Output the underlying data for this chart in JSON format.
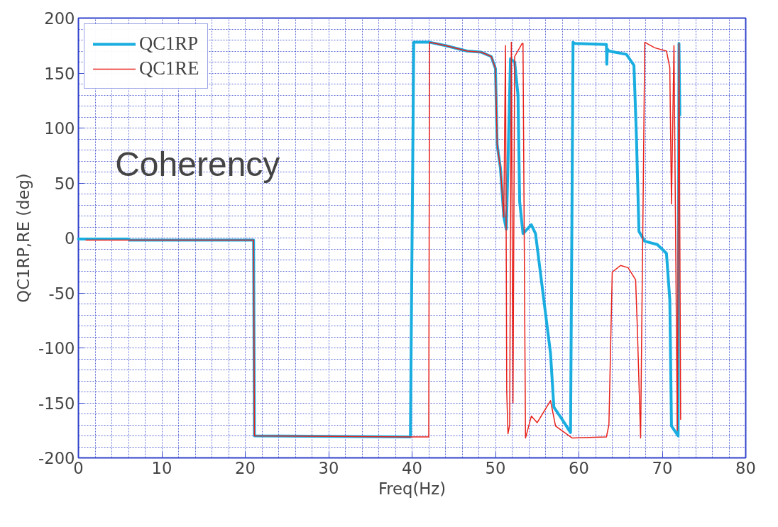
{
  "chart_data": {
    "type": "line",
    "xlabel": "Freq(Hz)",
    "ylabel": "QC1RP,RE (deg)",
    "annotations": [
      "Coherency"
    ],
    "xlim": [
      0,
      80
    ],
    "xticks": [
      0,
      10,
      20,
      30,
      40,
      50,
      60,
      70,
      80
    ],
    "ylim": [
      -200,
      200
    ],
    "yticks": [
      -200,
      -150,
      -100,
      -50,
      0,
      50,
      100,
      150,
      200
    ],
    "grid": true,
    "legend": "top left",
    "marker": "none",
    "line_style": "solid",
    "series": [
      {
        "name": "QC1RP",
        "color": "#1aaee0",
        "x": [
          0,
          6,
          6.1,
          21,
          21.1,
          39.8,
          40.2,
          42.1,
          44,
          46.6,
          48.3,
          49.5,
          50,
          50.2,
          50.6,
          51.0,
          51.3,
          51.5,
          51.8,
          52.3,
          52.7,
          52.9,
          53.3,
          54.3,
          54.8,
          56.6,
          57,
          57.9,
          59,
          59.3,
          59.5,
          63.3,
          63.35,
          63.4,
          63.6,
          65.7,
          66.6,
          66.9,
          67.2,
          67.9,
          69.4,
          70.5,
          70.9,
          71.1,
          71.9,
          72.0,
          72.1
        ],
        "values": [
          -1,
          -1,
          -2,
          -2,
          -180,
          -181,
          178,
          178,
          175,
          170,
          169,
          165,
          154,
          85,
          63,
          19,
          8,
          68,
          163,
          160,
          130,
          33,
          4,
          12,
          4,
          -105,
          -154,
          -164,
          -177,
          178,
          177,
          176,
          158,
          172,
          170,
          167,
          157,
          92,
          6,
          -3,
          -6,
          -14,
          -56,
          -171,
          -180,
          177,
          112
        ]
      },
      {
        "name": "QC1RE",
        "color": "#e8231c",
        "x": [
          0.9,
          6,
          6.1,
          21,
          21.1,
          39.8,
          42.0,
          42.1,
          44,
          46.6,
          48.3,
          49.5,
          50,
          50.2,
          50.6,
          51.0,
          51.2,
          51.35,
          51.5,
          51.7,
          51.9,
          52.1,
          52.3,
          53.2,
          53.3,
          53.6,
          54.3,
          55,
          56.6,
          57.2,
          59.2,
          63.3,
          63.6,
          64,
          65,
          65.9,
          66.8,
          67,
          67.4,
          67.9,
          69.1,
          70.5,
          70.9,
          71.1,
          71.4,
          71.8,
          72.0,
          72.2
        ],
        "values": [
          -2,
          -2,
          -2,
          -2,
          -180,
          -181,
          -181,
          178,
          175,
          170,
          169,
          165,
          154,
          85,
          63,
          19,
          175,
          -140,
          -178,
          -170,
          178,
          -150,
          165,
          177,
          177,
          -182,
          -162,
          -168,
          -148,
          -171,
          -182,
          -181,
          -170,
          -31,
          -25,
          -27,
          -38,
          -80,
          -182,
          178,
          173,
          170,
          155,
          31,
          175,
          -175,
          177,
          -165
        ]
      }
    ]
  }
}
